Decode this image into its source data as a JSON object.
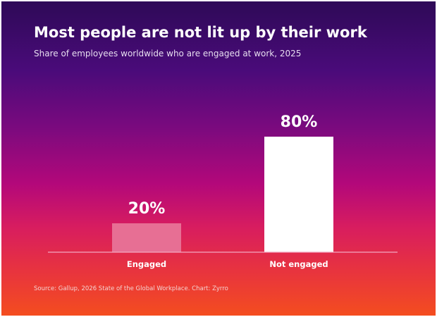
{
  "title": "Most people are not lit up by their work",
  "subtitle": "Share of employees worldwide who are engaged at work, 2025",
  "source": "Source: Gallup, 2026 State of the Global Workplace.  Chart: Zyrro",
  "colors": {
    "background_top": "#2e0a57",
    "background_bottom": "#f44d1f",
    "engaged_bar": "#e76f94",
    "not_engaged_bar": "#ffffff",
    "baseline": "#f2a9c0",
    "text": "#ffffff"
  },
  "chart_data": {
    "type": "bar",
    "categories": [
      "Engaged",
      "Not engaged"
    ],
    "values": [
      20,
      80
    ],
    "value_labels": [
      "20%",
      "80%"
    ],
    "unit": "%",
    "ylim": [
      0,
      100
    ],
    "grid": false,
    "legend": "none",
    "y_axis_visible": false
  }
}
